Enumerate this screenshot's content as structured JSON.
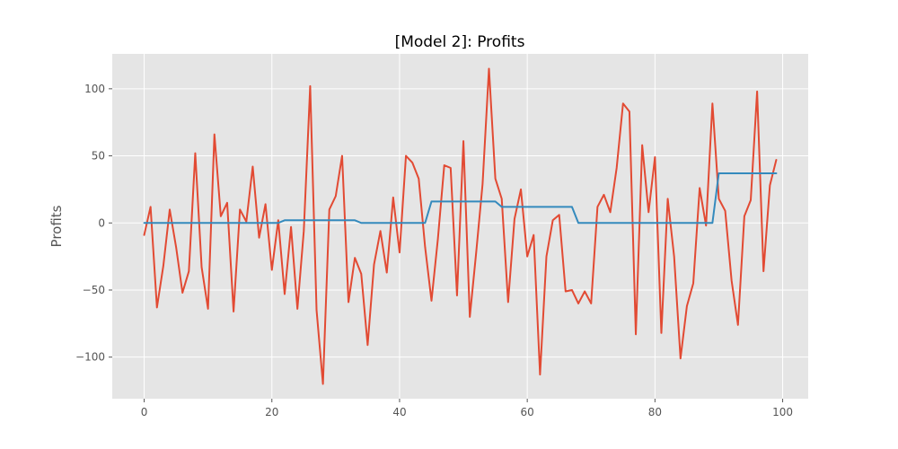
{
  "chart_data": {
    "type": "line",
    "title": "[Model 2]: Profits",
    "xlabel": "",
    "ylabel": "Profits",
    "xlim": [
      -5,
      104
    ],
    "ylim": [
      -131,
      126
    ],
    "xticks": [
      0,
      20,
      40,
      60,
      80,
      100
    ],
    "yticks": [
      -100,
      -50,
      0,
      50,
      100
    ],
    "xtick_labels": [
      "0",
      "20",
      "40",
      "60",
      "80",
      "100"
    ],
    "ytick_labels": [
      "−100",
      "−50",
      "0",
      "50",
      "100"
    ],
    "grid": true,
    "legend": "none",
    "colors": {
      "plot_background": "#e5e5e5",
      "grid": "#ffffff",
      "series_1": "#e24a33",
      "series_2": "#348abd"
    },
    "series": [
      {
        "values": [
          -9,
          12,
          -63,
          -32,
          10,
          -18,
          -52,
          -36,
          52,
          -33,
          -64,
          66,
          5,
          15,
          -66,
          10,
          1,
          42,
          -11,
          14,
          -35,
          2,
          -53,
          -3,
          -64,
          -6,
          102,
          -65,
          -120,
          10,
          20,
          50,
          -59,
          -26,
          -38,
          -91,
          -31,
          -6,
          -37,
          19,
          -22,
          50,
          45,
          33,
          -18,
          -58,
          -12,
          43,
          41,
          -54,
          61,
          -70,
          -22,
          29,
          115,
          33,
          18,
          -59,
          3,
          25,
          -25,
          -9,
          -113,
          -25,
          2,
          6,
          -51,
          -50,
          -60,
          -51,
          -60,
          12,
          21,
          8,
          41,
          89,
          83,
          -83,
          58,
          8,
          49,
          -82,
          18,
          -25,
          -101,
          -62,
          -45,
          26,
          -2,
          89,
          18,
          9,
          -43,
          -76,
          5,
          17,
          98,
          -36,
          28,
          47
        ]
      },
      {
        "values": [
          0,
          0,
          0,
          0,
          0,
          0,
          0,
          0,
          0,
          0,
          0,
          0,
          0,
          0,
          0,
          0,
          0,
          0,
          0,
          0,
          0,
          0,
          2,
          2,
          2,
          2,
          2,
          2,
          2,
          2,
          2,
          2,
          2,
          2,
          0,
          0,
          0,
          0,
          0,
          0,
          0,
          0,
          0,
          0,
          0,
          16,
          16,
          16,
          16,
          16,
          16,
          16,
          16,
          16,
          16,
          16,
          12,
          12,
          12,
          12,
          12,
          12,
          12,
          12,
          12,
          12,
          12,
          12,
          0,
          0,
          0,
          0,
          0,
          0,
          0,
          0,
          0,
          0,
          0,
          0,
          0,
          0,
          0,
          0,
          0,
          0,
          0,
          0,
          0,
          0,
          37,
          37,
          37,
          37,
          37,
          37,
          37,
          37,
          37,
          37
        ]
      }
    ]
  }
}
